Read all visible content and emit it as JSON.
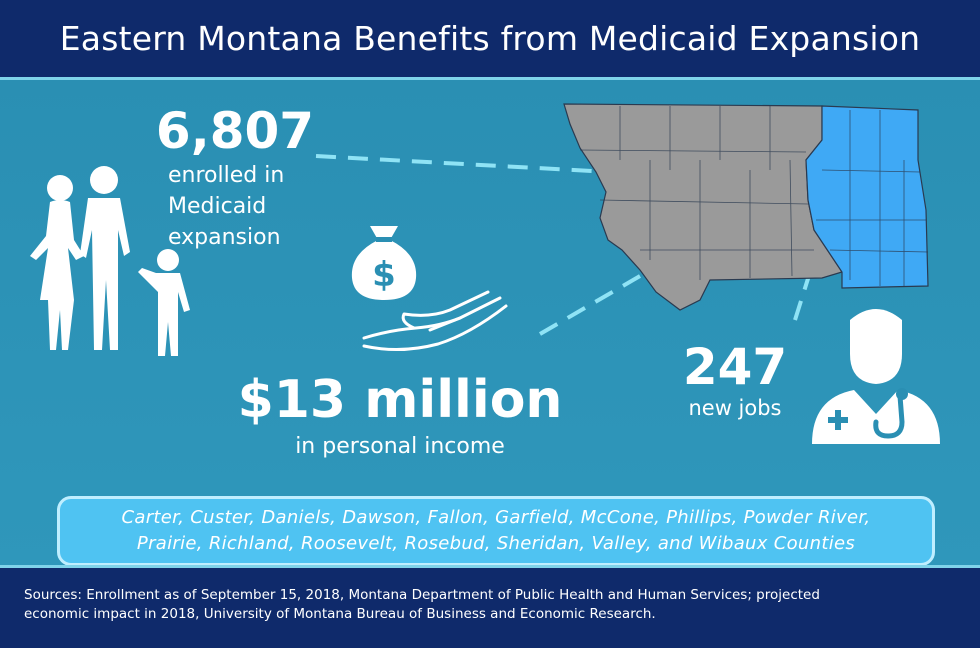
{
  "header": {
    "title": "Eastern Montana Benefits from Medicaid Expansion"
  },
  "enrollment": {
    "number": "6,807",
    "line1": "enrolled in",
    "line2": "Medicaid",
    "line3": "expansion"
  },
  "income": {
    "number": "$13 million",
    "label": "in personal income"
  },
  "jobs": {
    "number": "247",
    "label": "new jobs"
  },
  "counties": {
    "line1": "Carter, Custer, Daniels, Dawson, Fallon, Garfield, McCone, Phillips, Powder River,",
    "line2": "Prairie, Richland, Roosevelt, Rosebud, Sheridan, Valley, and Wibaux Counties"
  },
  "sources": {
    "line1": "Sources: Enrollment as of September 15, 2018, Montana Department of Public Health and Human Services; projected",
    "line2": "economic impact in 2018, University of Montana Bureau of Business and Economic Research."
  },
  "colors": {
    "header_bg": "#0f2a6b",
    "panel_bg": "#2f97bb",
    "map_gray": "#9a9a9a",
    "map_blue": "#3fa9f5",
    "callout_bg": "#4fc3f2",
    "accent_line": "#7fd3ea"
  },
  "icons": [
    "family-icon",
    "money-bag-icon",
    "open-hand-icon",
    "montana-map",
    "doctor-icon"
  ]
}
